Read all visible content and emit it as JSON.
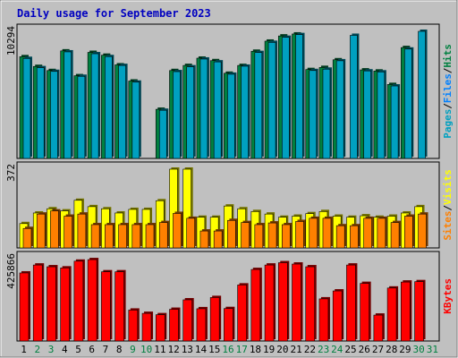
{
  "chart_data": {
    "type": "bar",
    "title": "Daily usage for September 2023",
    "days": [
      "1",
      "2",
      "3",
      "4",
      "5",
      "6",
      "7",
      "8",
      "9",
      "10",
      "11",
      "12",
      "13",
      "14",
      "15",
      "16",
      "17",
      "18",
      "19",
      "20",
      "21",
      "22",
      "23",
      "24",
      "25",
      "26",
      "27",
      "28",
      "29",
      "30",
      "31"
    ],
    "weekend_days": [
      "2",
      "3",
      "9",
      "10",
      "16",
      "17",
      "23",
      "24",
      "30",
      "31"
    ],
    "colors": {
      "pages": "#00a0c0",
      "files": "#0080ff",
      "hits": "#008040",
      "visits": "#ffff00",
      "sites": "#ff8000",
      "kbytes": "#ff0000",
      "weekday_label": "#000000",
      "weekend_label": "#008040"
    },
    "panels": [
      {
        "name": "hits",
        "max_label": "10294",
        "ymax": 10294,
        "series": [
          {
            "name": "Hits",
            "values": [
              8240,
              7450,
              7120,
              8710,
              6700,
              8590,
              8360,
              7580,
              6270,
              null,
              3980,
              7120,
              7530,
              8120,
              7920,
              6900,
              7530,
              8680,
              9500,
              9920,
              10080,
              7200,
              7370,
              7990,
              null,
              7170,
              7080,
              5990,
              8980,
              null,
              null
            ]
          },
          {
            "name": "Files",
            "values": [
              null,
              null,
              null,
              null,
              null,
              null,
              null,
              null,
              null,
              null,
              null,
              null,
              null,
              null,
              null,
              null,
              null,
              null,
              null,
              null,
              null,
              null,
              null,
              null,
              null,
              null,
              null,
              null,
              null,
              null,
              null
            ]
          },
          {
            "name": "Pages",
            "values": [
              8100,
              7350,
              7050,
              8630,
              6650,
              8480,
              8250,
              7530,
              6180,
              null,
              3900,
              7030,
              7420,
              8050,
              7820,
              6820,
              7470,
              8580,
              9400,
              9810,
              10030,
              7120,
              7230,
              7910,
              9970,
              7090,
              7010,
              5870,
              8860,
              10294,
              null
            ]
          }
        ],
        "labels": [
          {
            "text": "Pages",
            "color": "#00a0c0"
          },
          {
            "text": "Files",
            "color": "#0080ff"
          },
          {
            "text": "Hits",
            "color": "#008040"
          }
        ]
      },
      {
        "name": "visits",
        "max_label": "372",
        "ymax": 372,
        "series": [
          {
            "name": "Visits",
            "values": [
              115,
              165,
              185,
              175,
              225,
              195,
              185,
              165,
              182,
              182,
              223,
              372,
              372,
              145,
              145,
              198,
              185,
              172,
              160,
              145,
              150,
              162,
              172,
              150,
              145,
              152,
              145,
              150,
              165,
              195,
              null
            ]
          },
          {
            "name": "Sites",
            "values": [
              92,
              160,
              175,
              150,
              160,
              110,
              110,
              110,
              110,
              110,
              120,
              163,
              140,
              80,
              80,
              130,
              120,
              110,
              118,
              110,
              125,
              140,
              140,
              105,
              105,
              140,
              140,
              120,
              150,
              160,
              null
            ]
          }
        ],
        "labels": [
          {
            "text": "Sites",
            "color": "#ff8000"
          },
          {
            "text": "Visits",
            "color": "#ffff00"
          }
        ]
      },
      {
        "name": "kbytes",
        "max_label": "425866",
        "ymax": 425866,
        "series": [
          {
            "name": "KBytes",
            "values": [
              352000,
              393000,
              384000,
              378000,
              413000,
              421000,
              358000,
              358000,
              160000,
              143000,
              136000,
              164000,
              213000,
              167000,
              225000,
              168000,
              290000,
              370000,
              393000,
              405000,
              398000,
              384000,
              218000,
              259000,
              393000,
              298000,
              134000,
              274000,
              305000,
              307000,
              null
            ]
          }
        ],
        "labels": [
          {
            "text": "KBytes",
            "color": "#ff0000"
          }
        ]
      }
    ]
  }
}
